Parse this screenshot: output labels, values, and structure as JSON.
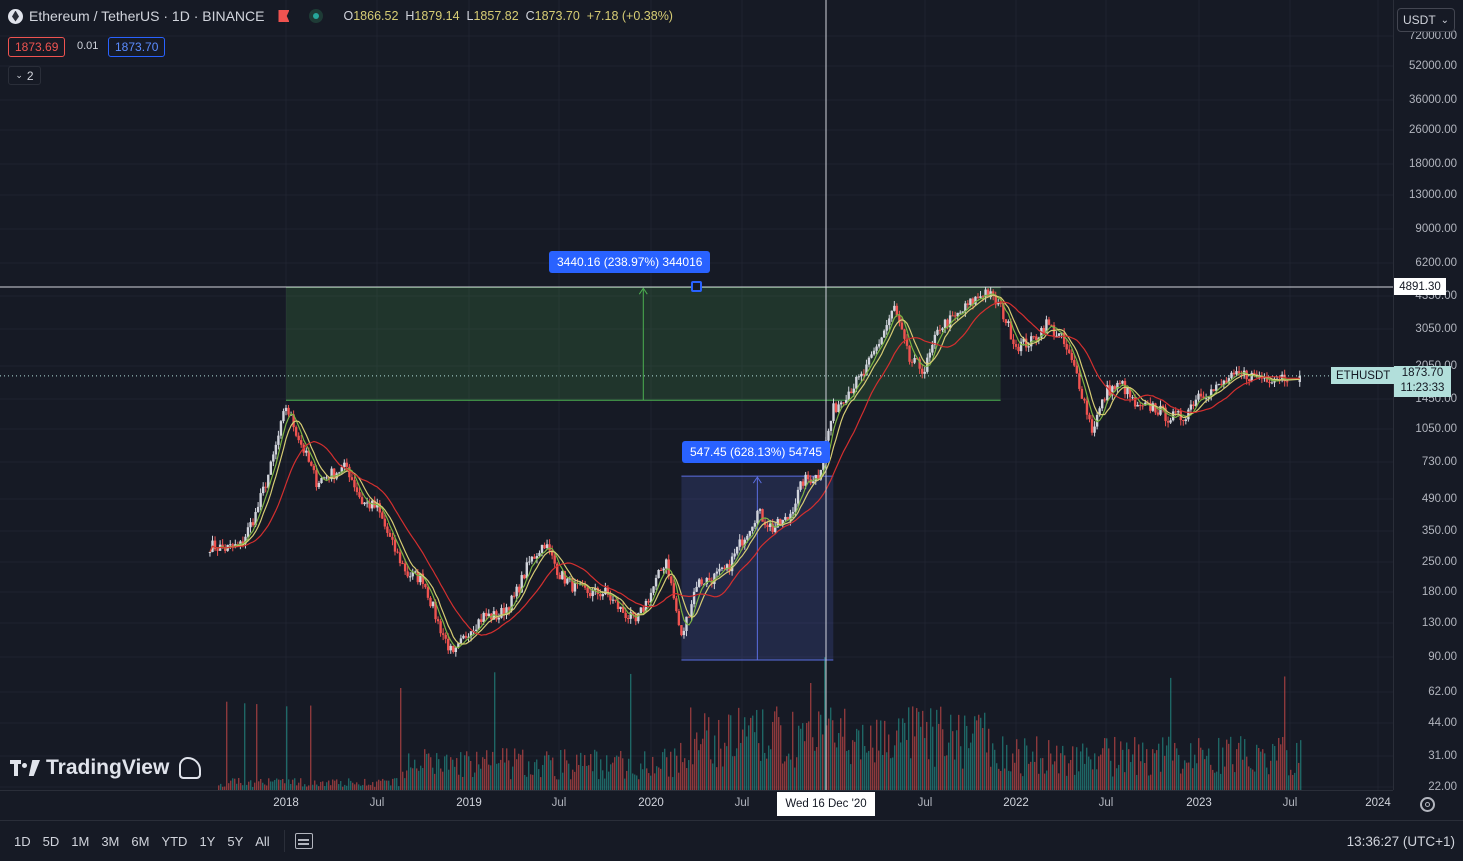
{
  "legend": {
    "symbol": "Ethereum / TetherUS · 1D · BINANCE",
    "open_label": "O",
    "open": "1866.52",
    "high_label": "H",
    "high": "1879.14",
    "low_label": "L",
    "low": "1857.82",
    "close_label": "C",
    "close": "1873.70",
    "change": "+7.18 (+0.38%)",
    "bid": "1873.69",
    "spread": "0.01",
    "ask": "1873.70",
    "indicators_count": "2"
  },
  "currency_selector": "USDT",
  "price_scale_labels": [
    "72000.00",
    "52000.00",
    "36000.00",
    "26000.00",
    "18000.00",
    "13000.00",
    "9000.00",
    "6200.00",
    "4350.00",
    "3050.00",
    "2050.00",
    "1450.00",
    "1050.00",
    "730.00",
    "490.00",
    "350.00",
    "250.00",
    "180.00",
    "130.00",
    "90.00",
    "62.00",
    "44.00",
    "31.00",
    "22.00"
  ],
  "crosshair_price": "4891.30",
  "last_price": {
    "symbol": "ETHUSDT",
    "price": "1873.70",
    "countdown": "11:23:33"
  },
  "time_scale_labels": [
    "2018",
    "Jul",
    "2019",
    "Jul",
    "2020",
    "Jul",
    "Jul",
    "2022",
    "Jul",
    "2023",
    "Jul",
    "2024"
  ],
  "crosshair_date": "Wed 16 Dec '20",
  "measure_tags": [
    {
      "text": "3440.16 (238.97%) 344016"
    },
    {
      "text": "547.45 (628.13%) 54745"
    }
  ],
  "watermark": "TradingView",
  "timeframes": [
    "1D",
    "5D",
    "1M",
    "3M",
    "6M",
    "YTD",
    "1Y",
    "5Y",
    "All"
  ],
  "clock": "13:36:27 (UTC+1)",
  "colors": {
    "background": "#161a25",
    "up": "#26a69a",
    "down": "#ef5350",
    "ma_yellow": "#d6cc74",
    "ma_green": "#7cb342",
    "ma_red": "#d32f2f",
    "accent": "#2962ff"
  },
  "chart_data": {
    "type": "candlestick",
    "symbol": "ETHUSDT",
    "scale": "log",
    "price_points": [
      [
        "2017-08",
        300
      ],
      [
        "2017-09",
        290
      ],
      [
        "2017-10",
        300
      ],
      [
        "2017-11",
        420
      ],
      [
        "2017-12",
        700
      ],
      [
        "2018-01",
        1350
      ],
      [
        "2018-02",
        900
      ],
      [
        "2018-03",
        600
      ],
      [
        "2018-04",
        650
      ],
      [
        "2018-05",
        700
      ],
      [
        "2018-06",
        480
      ],
      [
        "2018-07",
        450
      ],
      [
        "2018-08",
        300
      ],
      [
        "2018-09",
        220
      ],
      [
        "2018-10",
        210
      ],
      [
        "2018-11",
        130
      ],
      [
        "2018-12",
        90
      ],
      [
        "2019-01",
        120
      ],
      [
        "2019-02",
        140
      ],
      [
        "2019-03",
        140
      ],
      [
        "2019-04",
        170
      ],
      [
        "2019-05",
        250
      ],
      [
        "2019-06",
        310
      ],
      [
        "2019-07",
        220
      ],
      [
        "2019-08",
        190
      ],
      [
        "2019-09",
        180
      ],
      [
        "2019-10",
        180
      ],
      [
        "2019-11",
        150
      ],
      [
        "2019-12",
        130
      ],
      [
        "2020-01",
        180
      ],
      [
        "2020-02",
        260
      ],
      [
        "2020-03",
        110
      ],
      [
        "2020-04",
        200
      ],
      [
        "2020-05",
        210
      ],
      [
        "2020-06",
        230
      ],
      [
        "2020-07",
        320
      ],
      [
        "2020-08",
        430
      ],
      [
        "2020-09",
        360
      ],
      [
        "2020-10",
        400
      ],
      [
        "2020-11",
        600
      ],
      [
        "2020-12",
        640
      ],
      [
        "2021-01",
        1300
      ],
      [
        "2021-02",
        1600
      ],
      [
        "2021-03",
        1900
      ],
      [
        "2021-04",
        2700
      ],
      [
        "2021-05",
        3900
      ],
      [
        "2021-06",
        2200
      ],
      [
        "2021-07",
        2000
      ],
      [
        "2021-08",
        3200
      ],
      [
        "2021-09",
        3500
      ],
      [
        "2021-10",
        4100
      ],
      [
        "2021-11",
        4700
      ],
      [
        "2021-12",
        3900
      ],
      [
        "2022-01",
        2600
      ],
      [
        "2022-02",
        2700
      ],
      [
        "2022-03",
        3300
      ],
      [
        "2022-04",
        2800
      ],
      [
        "2022-05",
        1900
      ],
      [
        "2022-06",
        1050
      ],
      [
        "2022-07",
        1600
      ],
      [
        "2022-08",
        1700
      ],
      [
        "2022-09",
        1300
      ],
      [
        "2022-10",
        1350
      ],
      [
        "2022-11",
        1200
      ],
      [
        "2022-12",
        1200
      ],
      [
        "2023-01",
        1550
      ],
      [
        "2023-02",
        1600
      ],
      [
        "2023-03",
        1800
      ],
      [
        "2023-04",
        1900
      ],
      [
        "2023-05",
        1850
      ],
      [
        "2023-06",
        1850
      ],
      [
        "2023-07",
        1870
      ]
    ],
    "measures": [
      {
        "from_date": "2020-03",
        "to_date": "2020-12",
        "from_price": 87.15,
        "to_price": 634.6,
        "label": "547.45 (628.13%) 54745"
      },
      {
        "from_date": "2018-01",
        "to_date": "2021-11",
        "from_price": 1439.8,
        "to_price": 4880,
        "label": "3440.16 (238.97%) 344016"
      }
    ]
  }
}
